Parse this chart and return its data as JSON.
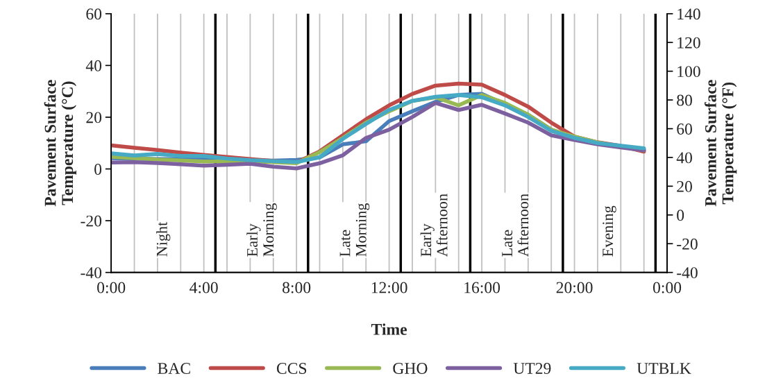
{
  "chart_data": {
    "type": "line",
    "xlabel": "Time",
    "ylabel": "Pavement Surface\nTemperature (°C)",
    "y2label": "Pavement Surface\nTemperature (°F)",
    "x": [
      0,
      1,
      2,
      3,
      4,
      5,
      6,
      7,
      8,
      9,
      10,
      11,
      12,
      13,
      14,
      15,
      16,
      17,
      18,
      19,
      20,
      21,
      22,
      23
    ],
    "series": [
      {
        "name": "BAC",
        "color": "#4a7ebb",
        "values": [
          4.2,
          4.0,
          3.8,
          3.8,
          3.8,
          3.6,
          3.4,
          3.2,
          3.5,
          4.5,
          9.5,
          10.7,
          18.5,
          22.3,
          25.9,
          28.6,
          29.0,
          25.0,
          21.0,
          15.2,
          12.0,
          9.8,
          8.5,
          7.6
        ]
      },
      {
        "name": "CCS",
        "color": "#be4b48",
        "values": [
          9.1,
          8.2,
          7.3,
          6.3,
          5.4,
          4.6,
          3.8,
          3.1,
          2.5,
          6.8,
          13.0,
          19.2,
          24.6,
          29.0,
          32.2,
          33.0,
          32.6,
          28.6,
          24.1,
          17.9,
          12.5,
          10.3,
          8.9,
          6.7
        ]
      },
      {
        "name": "GHO",
        "color": "#98b954",
        "values": [
          4.7,
          4.2,
          3.6,
          3.3,
          2.9,
          2.9,
          3.0,
          2.6,
          2.2,
          6.5,
          12.0,
          17.9,
          22.3,
          26.3,
          27.7,
          24.6,
          28.6,
          25.5,
          21.0,
          15.2,
          12.5,
          10.3,
          8.5,
          7.2
        ]
      },
      {
        "name": "UT29",
        "color": "#7d60a0",
        "values": [
          2.5,
          2.6,
          2.3,
          1.8,
          1.3,
          1.6,
          2.0,
          0.9,
          0.2,
          2.2,
          5.3,
          12.0,
          15.2,
          20.1,
          25.5,
          22.8,
          24.8,
          21.4,
          17.9,
          13.0,
          11.2,
          9.5,
          8.3,
          7.2
        ]
      },
      {
        "name": "UTBLK",
        "color": "#46aac5",
        "values": [
          6.0,
          5.2,
          5.8,
          5.0,
          5.0,
          4.0,
          3.4,
          3.0,
          2.7,
          4.5,
          11.6,
          17.4,
          22.8,
          26.3,
          27.9,
          28.6,
          27.7,
          24.6,
          20.1,
          14.7,
          12.0,
          10.0,
          9.0,
          8.0
        ]
      }
    ],
    "xlim": [
      0,
      24
    ],
    "xticks": [
      {
        "value": 0,
        "label": "0:00"
      },
      {
        "value": 4,
        "label": "4:00"
      },
      {
        "value": 8,
        "label": "8:00"
      },
      {
        "value": 12,
        "label": "12:00"
      },
      {
        "value": 16,
        "label": "16:00"
      },
      {
        "value": 20,
        "label": "20:00"
      },
      {
        "value": 24,
        "label": "0:00"
      }
    ],
    "ylim": [
      -40,
      60
    ],
    "yticks": [
      -40,
      -20,
      0,
      20,
      40,
      60
    ],
    "y2lim": [
      -40,
      140
    ],
    "y2ticks": [
      -40,
      -20,
      0,
      20,
      40,
      60,
      80,
      100,
      120,
      140
    ],
    "ref_lines": [
      {
        "axis": "x",
        "value": 1,
        "color": "#c0c0c0"
      },
      {
        "axis": "x",
        "value": 2,
        "color": "#c0c0c0"
      },
      {
        "axis": "x",
        "value": 3,
        "color": "#c0c0c0"
      },
      {
        "axis": "x",
        "value": 4,
        "color": "#c0c0c0"
      },
      {
        "axis": "x",
        "value": 5,
        "color": "#c0c0c0"
      },
      {
        "axis": "x",
        "value": 6,
        "color": "#c0c0c0"
      },
      {
        "axis": "x",
        "value": 7,
        "color": "#c0c0c0"
      },
      {
        "axis": "x",
        "value": 8,
        "color": "#c0c0c0"
      },
      {
        "axis": "x",
        "value": 9,
        "color": "#c0c0c0"
      },
      {
        "axis": "x",
        "value": 10,
        "color": "#c0c0c0"
      },
      {
        "axis": "x",
        "value": 11,
        "color": "#c0c0c0"
      },
      {
        "axis": "x",
        "value": 12,
        "color": "#c0c0c0"
      },
      {
        "axis": "x",
        "value": 13,
        "color": "#c0c0c0"
      },
      {
        "axis": "x",
        "value": 14,
        "color": "#c0c0c0"
      },
      {
        "axis": "x",
        "value": 15,
        "color": "#c0c0c0"
      },
      {
        "axis": "x",
        "value": 16,
        "color": "#c0c0c0"
      },
      {
        "axis": "x",
        "value": 17,
        "color": "#c0c0c0"
      },
      {
        "axis": "x",
        "value": 18,
        "color": "#c0c0c0"
      },
      {
        "axis": "x",
        "value": 19,
        "color": "#c0c0c0"
      },
      {
        "axis": "x",
        "value": 20,
        "color": "#c0c0c0"
      },
      {
        "axis": "x",
        "value": 21,
        "color": "#c0c0c0"
      },
      {
        "axis": "x",
        "value": 22,
        "color": "#c0c0c0"
      },
      {
        "axis": "x",
        "value": 23,
        "color": "#c0c0c0"
      },
      {
        "axis": "x",
        "value": 4.5,
        "color": "#000000"
      },
      {
        "axis": "x",
        "value": 8.5,
        "color": "#000000"
      },
      {
        "axis": "x",
        "value": 12.5,
        "color": "#000000"
      },
      {
        "axis": "x",
        "value": 15.5,
        "color": "#000000"
      },
      {
        "axis": "x",
        "value": 19.5,
        "color": "#000000"
      },
      {
        "axis": "x",
        "value": 23.5,
        "color": "#000000"
      }
    ],
    "annotations": [
      "Night",
      "Early\nMorning",
      "Late\nMorning",
      "Early\nAfternoon",
      "Late\nAfternoon",
      "Evening"
    ],
    "legend": "bottom",
    "grid": false,
    "line_style": "solid",
    "marker": "none"
  }
}
